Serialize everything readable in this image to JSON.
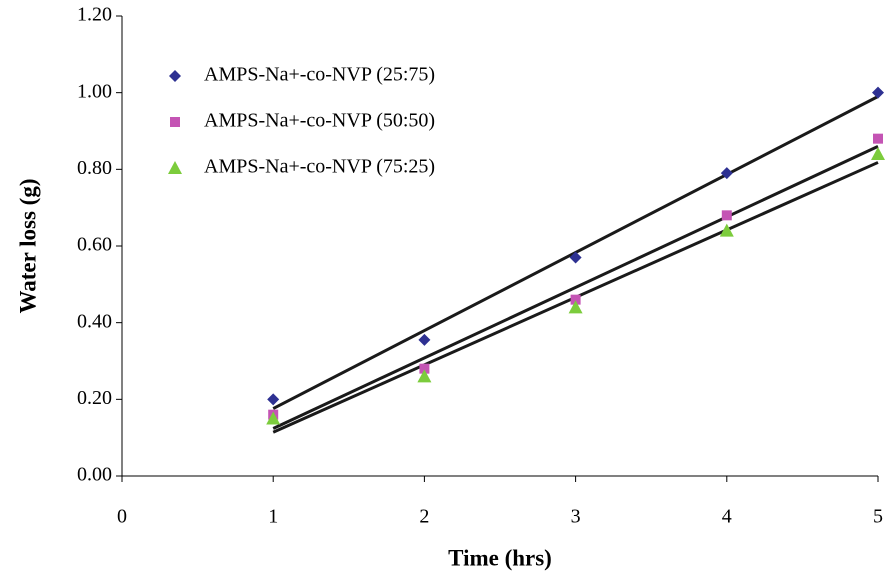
{
  "chart_data": {
    "type": "scatter",
    "x_label": "Time (hrs)",
    "y_label": "Water loss (g)",
    "x": [
      1,
      2,
      3,
      4,
      5
    ],
    "series": [
      {
        "name": "AMPS-Na+-co-NVP (25:75)",
        "color": "#2e3192",
        "marker": "diamond",
        "values": [
          0.2,
          0.355,
          0.57,
          0.79,
          1.0
        ]
      },
      {
        "name": "AMPS-Na+-co-NVP (50:50)",
        "color": "#c454b4",
        "marker": "square",
        "values": [
          0.16,
          0.28,
          0.46,
          0.68,
          0.88
        ]
      },
      {
        "name": "AMPS-Na+-co-NVP (75:25)",
        "color": "#7ccc3c",
        "marker": "triangle",
        "values": [
          0.15,
          0.26,
          0.44,
          0.64,
          0.84
        ]
      }
    ],
    "trendline": "linear",
    "trendline_color": "#1a1a1a",
    "xlim": [
      0,
      5
    ],
    "xticks": [
      0,
      1,
      2,
      3,
      4,
      5
    ],
    "ylim": [
      0,
      1.2
    ],
    "yticks": [
      {
        "value": 0,
        "label": "0.00"
      },
      {
        "value": 0.2,
        "label": "0.20"
      },
      {
        "value": 0.4,
        "label": "0.40"
      },
      {
        "value": 0.6,
        "label": "0.60"
      },
      {
        "value": 0.8,
        "label": "0.80"
      },
      {
        "value": 1.0,
        "label": "1.00"
      },
      {
        "value": 1.2,
        "label": "1.20"
      }
    ],
    "legend": "upper-left"
  }
}
